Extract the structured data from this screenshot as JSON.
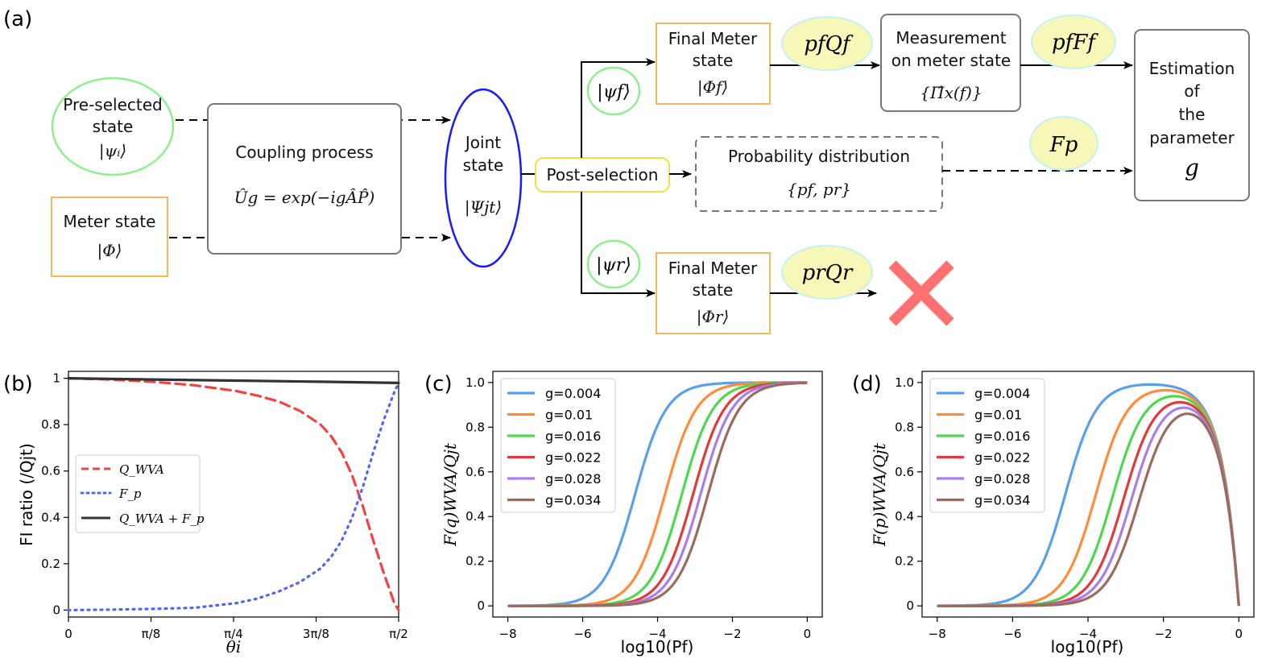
{
  "panel_a": {
    "label": "(a)",
    "preselected": {
      "line1": "Pre-selected",
      "line2": "state",
      "ket": "|ψᵢ⟩"
    },
    "meter": {
      "line1": "Meter state",
      "ket": "|Φ⟩"
    },
    "coupling": {
      "title": "Coupling process",
      "formula": "Ûg = exp(−igÂP̂)"
    },
    "joint": {
      "line1": "Joint",
      "line2": "state",
      "ket": "|Ψjt⟩"
    },
    "postselection": "Post-selection",
    "psi_f": "|ψf⟩",
    "psi_r": "|ψr⟩",
    "final_f": {
      "line1": "Final Meter",
      "line2": "state",
      "ket": "|Φf⟩"
    },
    "final_r": {
      "line1": "Final Meter",
      "line2": "state",
      "ket": "|Φr⟩"
    },
    "pfQf": "pfQf",
    "prQr": "prQr",
    "measurement": {
      "line1": "Measurement",
      "line2": "on meter state",
      "formula": "{Π̂x(f)}"
    },
    "pfFf": "pfFf",
    "prob": {
      "title": "Probability distribution",
      "formula": "{pf, pr}"
    },
    "Fp": "Fp",
    "estimation": {
      "line1": "Estimation",
      "line2": "of",
      "line3": "the",
      "line4": "parameter",
      "g": "g"
    },
    "colors": {
      "green": "#90ee90",
      "orange": "#f4b860",
      "blue": "#1a1aff",
      "yellow": "#f5f5b0",
      "yellow_border": "#e8e860",
      "gray": "#666666",
      "cross": "#ff7070",
      "cyan": "#c8f0f0"
    }
  },
  "chart_data": [
    {
      "panel": "(b)",
      "type": "line",
      "xlabel": "θi",
      "ylabel": "FI ratio (/Qjt)",
      "x_ticks": [
        "0",
        "π/8",
        "π/4",
        "3π/8",
        "π/2"
      ],
      "y_ticks": [
        "0",
        "0.2",
        "0.4",
        "0.6",
        "0.8",
        "1"
      ],
      "xlim": [
        0,
        1.5708
      ],
      "ylim": [
        -0.03,
        1.03
      ],
      "legend": [
        "Q_WVA",
        "F_p",
        "Q_WVA + F_p"
      ],
      "series": [
        {
          "name": "Q_WVA",
          "color": "#ee4444",
          "style": "dashed",
          "x": [
            0,
            0.2,
            0.4,
            0.6,
            0.8,
            0.9,
            1.0,
            1.1,
            1.2,
            1.25,
            1.3,
            1.35,
            1.4,
            1.45,
            1.5,
            1.55,
            1.5708
          ],
          "y": [
            1.0,
            0.995,
            0.985,
            0.97,
            0.945,
            0.925,
            0.9,
            0.86,
            0.8,
            0.75,
            0.68,
            0.58,
            0.45,
            0.3,
            0.16,
            0.03,
            0.0
          ]
        },
        {
          "name": "F_p",
          "color": "#5566ee",
          "style": "dotted",
          "x": [
            0,
            0.2,
            0.4,
            0.6,
            0.8,
            0.9,
            1.0,
            1.1,
            1.2,
            1.25,
            1.3,
            1.35,
            1.4,
            1.45,
            1.5,
            1.55,
            1.5708
          ],
          "y": [
            0.0,
            0.002,
            0.005,
            0.01,
            0.03,
            0.05,
            0.08,
            0.12,
            0.18,
            0.23,
            0.3,
            0.4,
            0.53,
            0.68,
            0.82,
            0.94,
            0.98
          ]
        },
        {
          "name": "Q_WVA + F_p",
          "color": "#333333",
          "style": "solid",
          "x": [
            0,
            0.4,
            0.8,
            1.2,
            1.5708
          ],
          "y": [
            1.0,
            0.995,
            0.99,
            0.985,
            0.98
          ]
        }
      ]
    },
    {
      "panel": "(c)",
      "type": "line",
      "xlabel": "log10(Pf)",
      "ylabel": "F(q)WVA/Qjt",
      "x_ticks": [
        "−8",
        "−6",
        "−4",
        "−2",
        "0"
      ],
      "y_ticks": [
        "0",
        "0.2",
        "0.4",
        "0.6",
        "0.8",
        "1.0"
      ],
      "xlim": [
        -8.4,
        0.4
      ],
      "ylim": [
        -0.05,
        1.05
      ],
      "legend": [
        "g=0.004",
        "g=0.01",
        "g=0.016",
        "g=0.022",
        "g=0.028",
        "g=0.034"
      ],
      "series": [
        {
          "name": "g=0.004",
          "color": "#5aa0e8",
          "x0": -4.6
        },
        {
          "name": "g=0.01",
          "color": "#ff8c3a",
          "x0": -3.8
        },
        {
          "name": "g=0.016",
          "color": "#4fd84f",
          "x0": -3.35
        },
        {
          "name": "g=0.022",
          "color": "#e23a3a",
          "x0": -3.05
        },
        {
          "name": "g=0.028",
          "color": "#a87ee8",
          "x0": -2.85
        },
        {
          "name": "g=0.034",
          "color": "#9b6b60",
          "x0": -2.65
        }
      ]
    },
    {
      "panel": "(d)",
      "type": "line",
      "xlabel": "log10(Pf)",
      "ylabel": "F(p)WVA/Qjt",
      "x_ticks": [
        "−8",
        "−6",
        "−4",
        "−2",
        "0"
      ],
      "y_ticks": [
        "0",
        "0.2",
        "0.4",
        "0.6",
        "0.8",
        "1.0"
      ],
      "xlim": [
        -8.4,
        0.4
      ],
      "ylim": [
        -0.05,
        1.05
      ],
      "legend": [
        "g=0.004",
        "g=0.01",
        "g=0.016",
        "g=0.022",
        "g=0.028",
        "g=0.034"
      ],
      "series": [
        {
          "name": "g=0.004",
          "color": "#5aa0e8",
          "x0": -4.6
        },
        {
          "name": "g=0.01",
          "color": "#ff8c3a",
          "x0": -3.8
        },
        {
          "name": "g=0.016",
          "color": "#4fd84f",
          "x0": -3.35
        },
        {
          "name": "g=0.022",
          "color": "#e23a3a",
          "x0": -3.05
        },
        {
          "name": "g=0.028",
          "color": "#a87ee8",
          "x0": -2.85
        },
        {
          "name": "g=0.034",
          "color": "#9b6b60",
          "x0": -2.65
        }
      ]
    }
  ],
  "panel_labels": {
    "b": "(b)",
    "c": "(c)",
    "d": "(d)"
  }
}
